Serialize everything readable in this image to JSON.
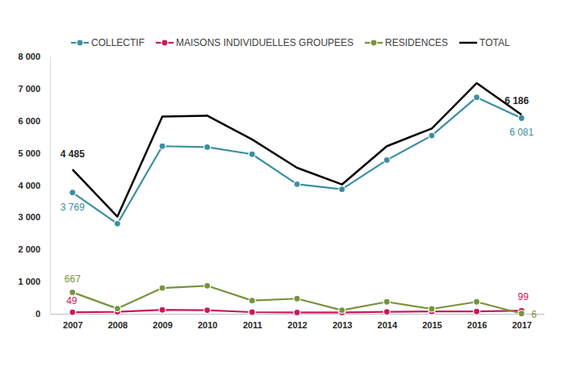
{
  "chart_data": {
    "type": "line",
    "categories": [
      "2007",
      "2008",
      "2009",
      "2010",
      "2011",
      "2012",
      "2013",
      "2014",
      "2015",
      "2016",
      "2017"
    ],
    "ylim": [
      0,
      8000
    ],
    "yticks": [
      0,
      {
        "value": 1000,
        "label": "1 000"
      },
      {
        "value": 2000,
        "label": "2 000"
      },
      {
        "value": 3000,
        "label": "3 000"
      },
      {
        "value": 4000,
        "label": "4 000"
      },
      {
        "value": 5000,
        "label": "5 000"
      },
      {
        "value": 6000,
        "label": "6 000"
      },
      {
        "value": 7000,
        "label": "7 000"
      },
      {
        "value": 8000,
        "label": "8 000"
      }
    ],
    "grid": false,
    "legend": "top",
    "data_labels": true,
    "series": [
      {
        "name": "COLLECTIF",
        "color": "#3b8fa2",
        "marker": "circle",
        "line_style": "solid",
        "values": [
          3769,
          2800,
          5210,
          5180,
          4960,
          4030,
          3870,
          4780,
          5540,
          6730,
          6081
        ],
        "value_labels": [
          "3 769",
          null,
          null,
          null,
          null,
          null,
          null,
          null,
          null,
          null,
          "6 081"
        ]
      },
      {
        "name": "MAISONS INDIVIDUELLES GROUPEES",
        "color": "#c8195c",
        "marker": "circle",
        "line_style": "solid",
        "values": [
          49,
          60,
          120,
          110,
          50,
          40,
          40,
          60,
          70,
          70,
          99
        ],
        "value_labels": [
          "49",
          null,
          null,
          null,
          null,
          null,
          null,
          null,
          null,
          null,
          "99"
        ]
      },
      {
        "name": "RESIDENCES",
        "color": "#77933c",
        "marker": "circle",
        "line_style": "solid",
        "values": [
          667,
          160,
          800,
          870,
          410,
          470,
          110,
          370,
          150,
          370,
          6
        ],
        "value_labels": [
          "667",
          null,
          null,
          null,
          null,
          null,
          null,
          null,
          null,
          null,
          "6"
        ]
      },
      {
        "name": "TOTAL",
        "color": "#000000",
        "marker": "none",
        "line_style": "solid",
        "values": [
          4485,
          3020,
          6130,
          6160,
          5420,
          4540,
          4020,
          5210,
          5760,
          7170,
          6186
        ],
        "value_labels": [
          "4 485",
          null,
          null,
          null,
          null,
          null,
          null,
          null,
          null,
          null,
          "6 186"
        ]
      }
    ]
  }
}
